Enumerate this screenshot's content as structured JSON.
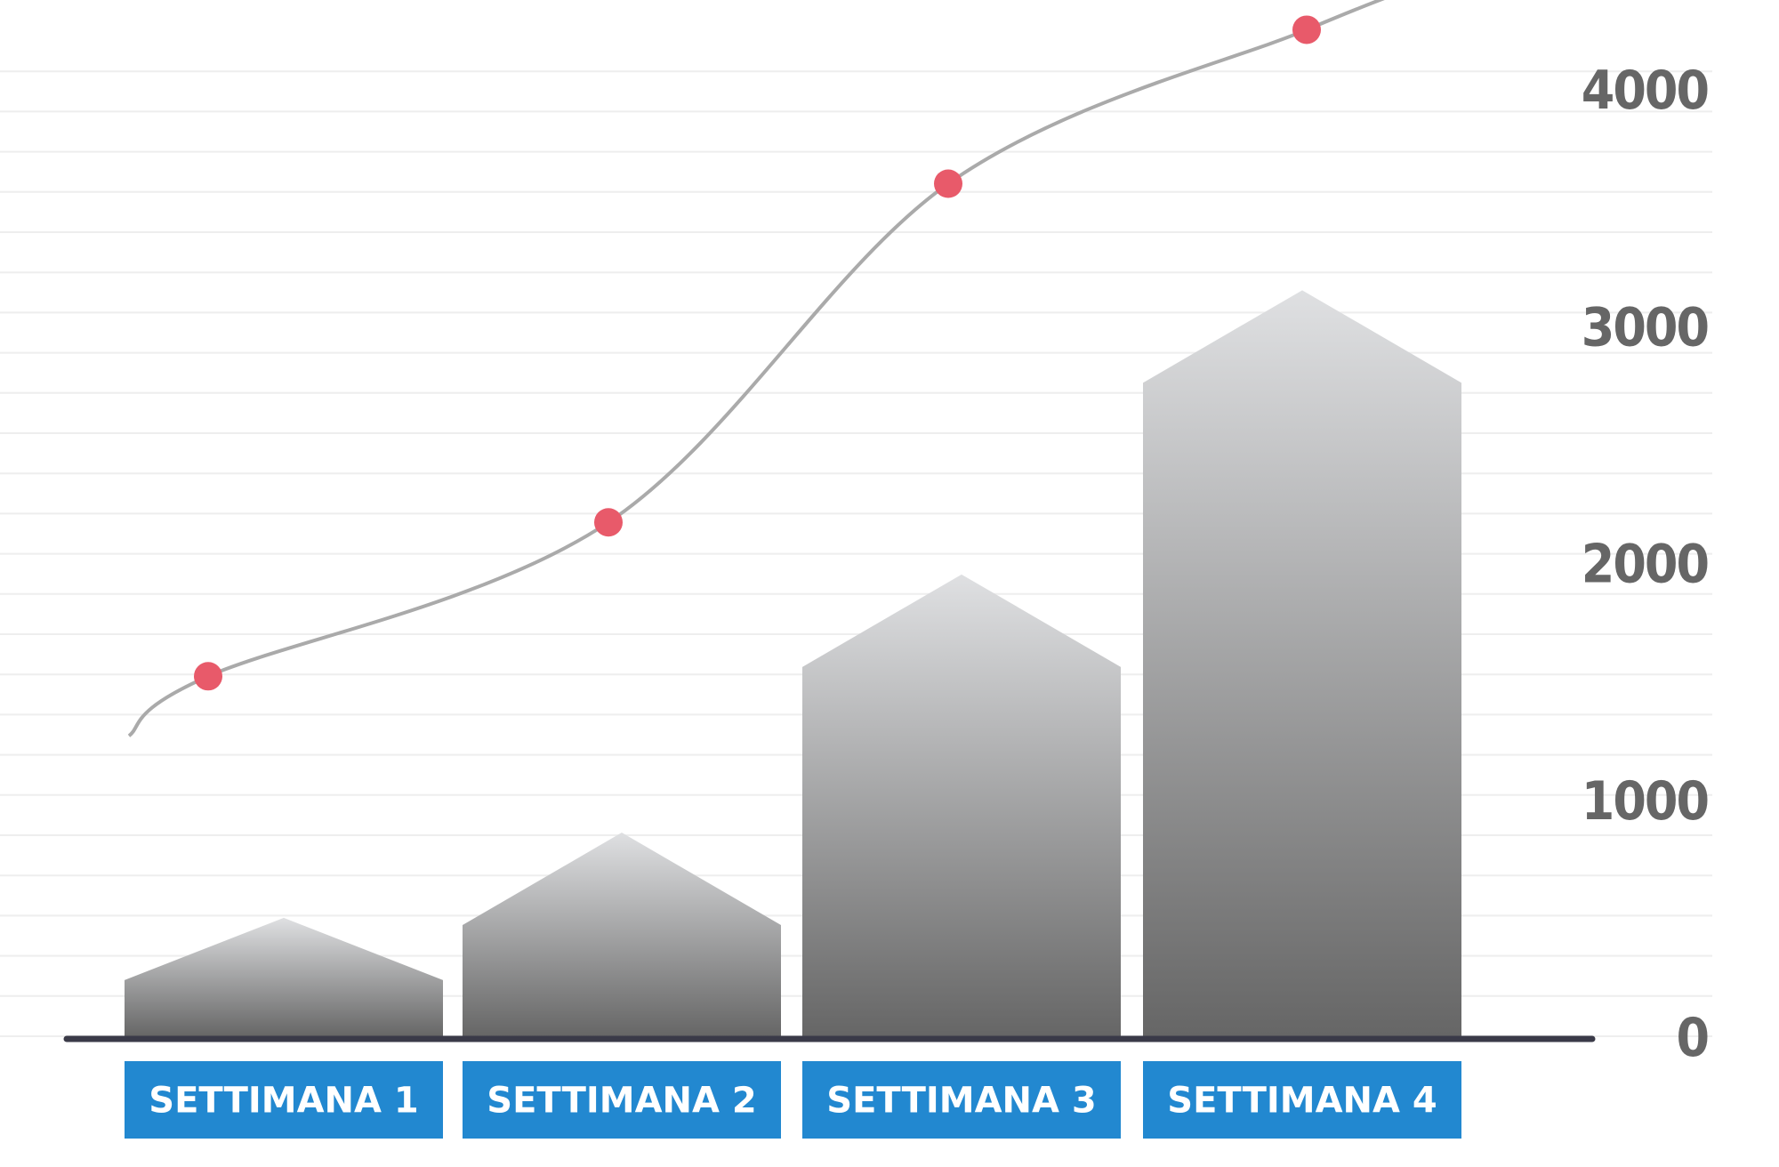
{
  "chart_data": {
    "type": "bar",
    "categories": [
      "SETTIMANA 1",
      "SETTIMANA 2",
      "SETTIMANA 3",
      "SETTIMANA 4"
    ],
    "series": [
      {
        "kind": "bar",
        "values": [
          500,
          860,
          1950,
          3150
        ]
      },
      {
        "kind": "line",
        "values": [
          1520,
          2170,
          3600,
          4250
        ]
      }
    ],
    "y_ticks": [
      "0",
      "1000",
      "2000",
      "3000",
      "4000"
    ],
    "ylim": [
      0,
      4000
    ],
    "grid": true,
    "colors": {
      "bar_top": "#dfe0e2",
      "bar_bottom": "#666666",
      "line": "#aaaaaa",
      "marker": "#e85a6a",
      "label_bg": "#2288d0",
      "label_text": "#ffffff",
      "baseline": "#3a3a48",
      "tick_text": "#666666",
      "grid": "#eeeeee"
    }
  }
}
